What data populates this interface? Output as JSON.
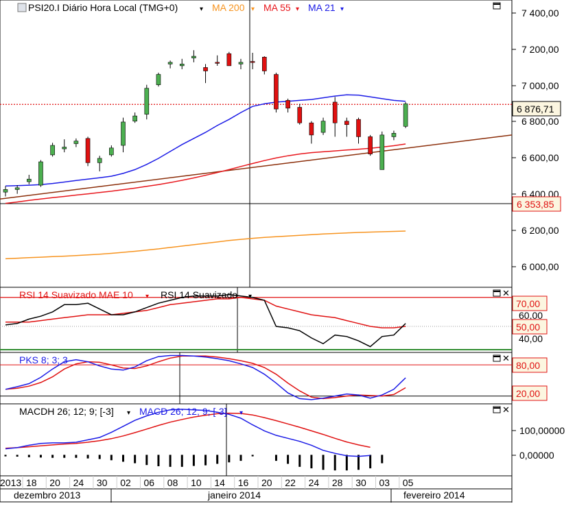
{
  "main_panel": {
    "title": "PSI20.I Diário Hora Local (TMG+0)",
    "legend": [
      {
        "label": "MA 200",
        "color": "#f7931e"
      },
      {
        "label": "MA 55",
        "color": "#e8151b"
      },
      {
        "label": "MA 21",
        "color": "#1a1ae6"
      }
    ],
    "y_ticks": [
      "7 400,00",
      "7 200,00",
      "7 000,00",
      "6 800,00",
      "6 600,00",
      "6 400,00",
      "6 200,00",
      "6 000,00"
    ],
    "last_price_label": "6 876,71",
    "crosshair_label": "6 353,85"
  },
  "rsi_panel": {
    "legend_1": "RSI 14 Suavizado MAE 10",
    "legend_2": "RSI 14 Suavizado",
    "y_ticks": [
      "60,00",
      "40,00"
    ],
    "level_labels": [
      "70,00",
      "50,00"
    ]
  },
  "pks_panel": {
    "legend": "PKS 8; 3; 3",
    "level_labels": [
      "80,00",
      "20,00"
    ]
  },
  "macd_panel": {
    "legend_1": "MACDH 26; 12; 9; [-3]",
    "legend_2": "MACD 26; 12; 9; [-3]",
    "y_ticks": [
      "100,00000",
      "0,00000"
    ]
  },
  "x_axis": {
    "day_labels": [
      "2013",
      "18",
      "20",
      "24",
      "30",
      "02",
      "06",
      "08",
      "10",
      "14",
      "16",
      "20",
      "22",
      "24",
      "28",
      "30",
      "03",
      "05"
    ],
    "month_labels": [
      "dezembro 2013",
      "janeiro 2014",
      "fevereiro 2014"
    ]
  },
  "colors": {
    "bull": "#4caf50",
    "bear": "#e01010",
    "ma200": "#f7931e",
    "ma55": "#e8151b",
    "ma21": "#1a1ae6",
    "trendline": "#8b2e0a",
    "legend_blue": "#1a1ae6",
    "legend_red": "#e01010"
  },
  "chart_data": [
    {
      "type": "candlestick",
      "title": "PSI20.I Diário Hora Local (TMG+0)",
      "ylim": [
        5820,
        7480
      ],
      "candles": [
        {
          "o": 6370,
          "h": 6405,
          "l": 6345,
          "c": 6385
        },
        {
          "o": 6385,
          "h": 6410,
          "l": 6360,
          "c": 6395
        },
        {
          "o": 6430,
          "h": 6470,
          "l": 6415,
          "c": 6445
        },
        {
          "o": 6410,
          "h": 6555,
          "l": 6400,
          "c": 6545
        },
        {
          "o": 6585,
          "h": 6655,
          "l": 6575,
          "c": 6640
        },
        {
          "o": 6620,
          "h": 6675,
          "l": 6600,
          "c": 6630
        },
        {
          "o": 6650,
          "h": 6680,
          "l": 6630,
          "c": 6665
        },
        {
          "o": 6680,
          "h": 6690,
          "l": 6520,
          "c": 6540
        },
        {
          "o": 6540,
          "h": 6580,
          "l": 6490,
          "c": 6565
        },
        {
          "o": 6585,
          "h": 6640,
          "l": 6575,
          "c": 6625
        },
        {
          "o": 6640,
          "h": 6800,
          "l": 6600,
          "c": 6775
        },
        {
          "o": 6780,
          "h": 6830,
          "l": 6770,
          "c": 6810
        },
        {
          "o": 6820,
          "h": 6990,
          "l": 6790,
          "c": 6970
        },
        {
          "o": 6990,
          "h": 7060,
          "l": 6980,
          "c": 7050
        },
        {
          "o": 7110,
          "h": 7130,
          "l": 7085,
          "c": 7120
        },
        {
          "o": 7100,
          "h": 7140,
          "l": 7080,
          "c": 7110
        },
        {
          "o": 7145,
          "h": 7190,
          "l": 7120,
          "c": 7155
        },
        {
          "o": 7090,
          "h": 7110,
          "l": 7000,
          "c": 7070
        },
        {
          "o": 7120,
          "h": 7160,
          "l": 7100,
          "c": 7115
        },
        {
          "o": 7170,
          "h": 7180,
          "l": 7100,
          "c": 7100
        },
        {
          "o": 7110,
          "h": 7140,
          "l": 7080,
          "c": 7120
        },
        {
          "o": 7125,
          "h": 7175,
          "l": 7080,
          "c": 7120
        },
        {
          "o": 7150,
          "h": 7155,
          "l": 7050,
          "c": 7070
        },
        {
          "o": 7050,
          "h": 7060,
          "l": 6830,
          "c": 6850
        },
        {
          "o": 6900,
          "h": 6910,
          "l": 6830,
          "c": 6855
        },
        {
          "o": 6860,
          "h": 6880,
          "l": 6760,
          "c": 6770
        },
        {
          "o": 6770,
          "h": 6780,
          "l": 6650,
          "c": 6700
        },
        {
          "o": 6715,
          "h": 6800,
          "l": 6700,
          "c": 6780
        },
        {
          "o": 6890,
          "h": 6920,
          "l": 6690,
          "c": 6770
        },
        {
          "o": 6780,
          "h": 6800,
          "l": 6690,
          "c": 6760
        },
        {
          "o": 6790,
          "h": 6800,
          "l": 6650,
          "c": 6690
        },
        {
          "o": 6690,
          "h": 6700,
          "l": 6580,
          "c": 6590
        },
        {
          "o": 6500,
          "h": 6720,
          "l": 6500,
          "c": 6700
        },
        {
          "o": 6690,
          "h": 6725,
          "l": 6670,
          "c": 6710
        },
        {
          "o": 6750,
          "h": 6890,
          "l": 6740,
          "c": 6880
        }
      ],
      "ma21": [
        6405,
        6407,
        6410,
        6413,
        6420,
        6428,
        6437,
        6445,
        6453,
        6462,
        6478,
        6500,
        6530,
        6565,
        6605,
        6645,
        6680,
        6715,
        6755,
        6790,
        6830,
        6865,
        6880,
        6890,
        6895,
        6900,
        6905,
        6915,
        6925,
        6932,
        6930,
        6920,
        6910,
        6900,
        6895
      ],
      "ma55": [
        6305,
        6313,
        6322,
        6330,
        6338,
        6345,
        6353,
        6360,
        6368,
        6375,
        6384,
        6393,
        6403,
        6413,
        6425,
        6438,
        6452,
        6467,
        6483,
        6500,
        6518,
        6535,
        6552,
        6567,
        6580,
        6590,
        6598,
        6603,
        6608,
        6613,
        6618,
        6623,
        6630,
        6638,
        6648
      ],
      "ma200": [
        5985,
        5988,
        5991,
        5994,
        5997,
        6000,
        6003,
        6007,
        6011,
        6016,
        6022,
        6028,
        6035,
        6042,
        6050,
        6058,
        6066,
        6074,
        6082,
        6090,
        6097,
        6103,
        6108,
        6112,
        6116,
        6120,
        6124,
        6128,
        6131,
        6134,
        6137,
        6139,
        6141,
        6143,
        6145
      ],
      "trendline": {
        "from": 6330,
        "to": 6700
      }
    },
    {
      "type": "line",
      "title": "RSI 14 Suavizado MAE 10",
      "ylim": [
        32,
        77
      ],
      "levels": [
        70,
        50
      ],
      "series": [
        {
          "name": "RSI 14 Suavizado",
          "values": [
            51,
            52,
            55,
            57,
            60,
            65,
            65,
            66,
            62,
            58,
            58,
            60,
            63,
            66,
            68,
            70,
            71,
            71,
            71,
            72,
            71,
            70,
            68,
            50,
            49,
            47,
            42,
            38,
            44,
            43,
            40,
            36,
            43,
            44,
            52
          ]
        },
        {
          "name": "RSI 14 Suavizado MAE 10",
          "values": [
            53,
            53,
            53,
            54,
            55,
            56,
            57,
            58,
            58,
            58,
            59,
            60,
            61,
            63,
            65,
            66,
            67,
            68,
            69,
            69,
            70,
            69,
            68,
            64,
            62,
            60,
            58,
            57,
            56,
            54,
            52,
            50,
            49,
            49,
            50
          ]
        }
      ]
    },
    {
      "type": "line",
      "title": "PKS 8; 3; 3",
      "ylim": [
        5,
        104
      ],
      "levels": [
        80,
        20
      ],
      "series": [
        {
          "name": "PKS %K",
          "values": [
            33,
            38,
            44,
            56,
            72,
            86,
            90,
            86,
            78,
            72,
            70,
            76,
            88,
            96,
            98,
            98,
            97,
            95,
            92,
            88,
            82,
            75,
            62,
            45,
            26,
            15,
            13,
            16,
            20,
            24,
            22,
            16,
            22,
            33,
            55
          ]
        },
        {
          "name": "PKS %D",
          "values": [
            33,
            35,
            39,
            46,
            57,
            72,
            82,
            86,
            85,
            80,
            74,
            73,
            78,
            86,
            93,
            97,
            97,
            97,
            95,
            92,
            88,
            83,
            75,
            62,
            45,
            30,
            18,
            15,
            17,
            20,
            22,
            21,
            20,
            23,
            36
          ]
        }
      ]
    },
    {
      "type": "line+histogram",
      "title": "MACD 26; 12; 9; [-3]",
      "ylim": [
        -70,
        170
      ],
      "series": [
        {
          "name": "MACD 26; 12; 9; [-3]",
          "values": [
            20,
            24,
            32,
            38,
            40,
            40,
            42,
            50,
            58,
            75,
            95,
            115,
            130,
            142,
            150,
            152,
            150,
            148,
            142,
            135,
            122,
            100,
            80,
            65,
            55,
            45,
            32,
            15,
            5,
            -3,
            -5,
            -2,
            null,
            null,
            null
          ]
        },
        {
          "name": "MACD signal",
          "values": [
            22,
            24,
            27,
            30,
            33,
            36,
            38,
            42,
            47,
            54,
            63,
            74,
            86,
            98,
            109,
            118,
            126,
            132,
            137,
            139,
            138,
            133,
            124,
            114,
            103,
            92,
            80,
            68,
            55,
            43,
            33,
            25,
            null,
            null,
            null
          ]
        },
        {
          "name": "MACDH 26; 12; 9; [-3]",
          "values": [
            -5,
            -6,
            -8,
            -9,
            -10,
            -10,
            -10,
            -12,
            -14,
            -18,
            -23,
            -28,
            -34,
            -38,
            -40,
            -40,
            -37,
            -35,
            -30,
            -25,
            -20,
            -5,
            null,
            -20,
            -30,
            -40,
            -45,
            -50,
            -52,
            -52,
            -50,
            -45,
            -28,
            null,
            null
          ]
        }
      ]
    }
  ]
}
